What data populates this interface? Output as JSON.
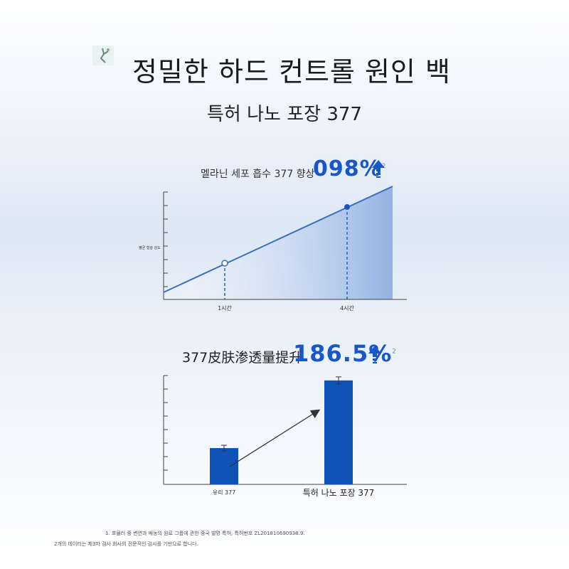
{
  "header": {
    "title": "정밀한 하드 컨트롤 원인 백",
    "subtitle": "특허 나노 포장 377"
  },
  "chart1_header": {
    "label": "멜라닌 세포 흡수 377 향상",
    "highlight": "098%",
    "note_mark": "2"
  },
  "chart2_header": {
    "label": "377皮肤渗透量提升",
    "highlight": "186.5%",
    "note_mark": "2"
  },
  "colors": {
    "accent": "#1857c9",
    "line": "#3a6fc0",
    "bar": "#0f52b8",
    "axis": "#333333"
  },
  "chart_data": [
    {
      "type": "area",
      "title": "멜라닌 세포 흡수 377 향상",
      "ylabel": "평균 형광 강도",
      "xlabel": "",
      "x_ticks": [
        "1시간",
        "4시간"
      ],
      "points": [
        {
          "x": "1시간",
          "marker": "hollow"
        },
        {
          "x": "4시간",
          "marker": "filled"
        }
      ],
      "grid": false
    },
    {
      "type": "bar",
      "title": "377皮肤渗透量提升",
      "ylabel": "",
      "categories": [
        "유리 377",
        "특허 나노 포장 377"
      ],
      "values": [
        1,
        2.865
      ],
      "error_bars": true,
      "annotation": "186.5%",
      "grid": false
    }
  ],
  "footnotes": [
    "1. 포뮬러 중 변연과 배농의 원료 그룹에 관한 중국 발명 특허, 특허번호 ZL201810690938.9.",
    "2개의 데이터는 제3자 검사 회사의 전문적인 검사를 기반으로 합니다."
  ]
}
